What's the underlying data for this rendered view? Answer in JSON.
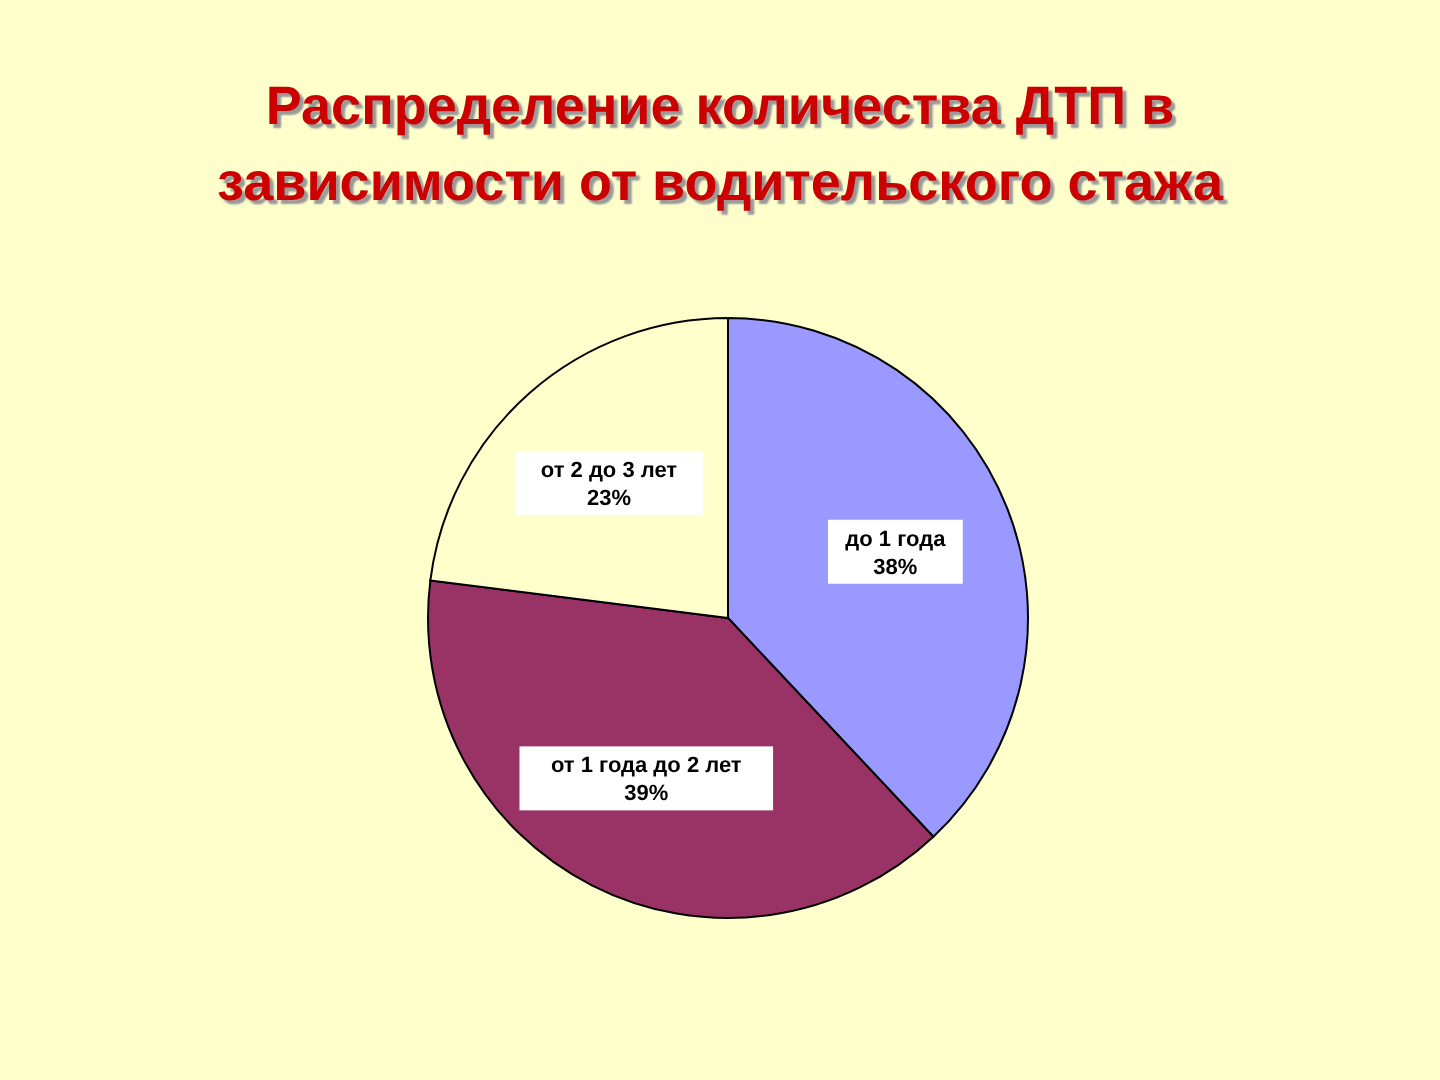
{
  "chart_data": {
    "type": "pie",
    "title": "Распределение количества ДТП в зависимости от водительского стажа",
    "categories": [
      "до 1 года",
      "от 1 года до 2 лет",
      "от 2 до 3 лет"
    ],
    "values": [
      38,
      39,
      23
    ],
    "value_labels": [
      "38%",
      "39%",
      "23%"
    ],
    "colors": [
      "#9999ff",
      "#993366",
      "#ffffcc"
    ],
    "legend": false
  }
}
